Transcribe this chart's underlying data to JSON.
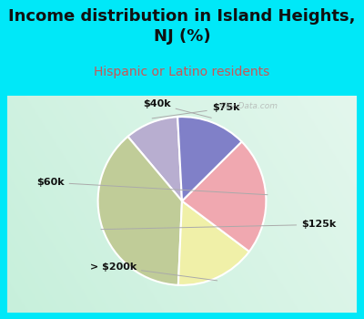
{
  "title": "Income distribution in Island Heights,\nNJ (%)",
  "subtitle": "Hispanic or Latino residents",
  "labels": [
    "$75k",
    "$125k",
    "> $200k",
    "$60k",
    "$40k"
  ],
  "sizes": [
    10,
    37,
    15,
    22,
    13
  ],
  "colors": [
    "#b8aed0",
    "#c0cc98",
    "#f0f0a8",
    "#f0a8b0",
    "#8080c8"
  ],
  "background_cyan": "#00e8f8",
  "chart_bg_left": "#c8e8d8",
  "chart_bg_right": "#e8f4f0",
  "title_fontsize": 13,
  "subtitle_fontsize": 10,
  "subtitle_color": "#cc5555",
  "label_color": "#111111",
  "startangle": 93,
  "watermark": "City-Data.com"
}
